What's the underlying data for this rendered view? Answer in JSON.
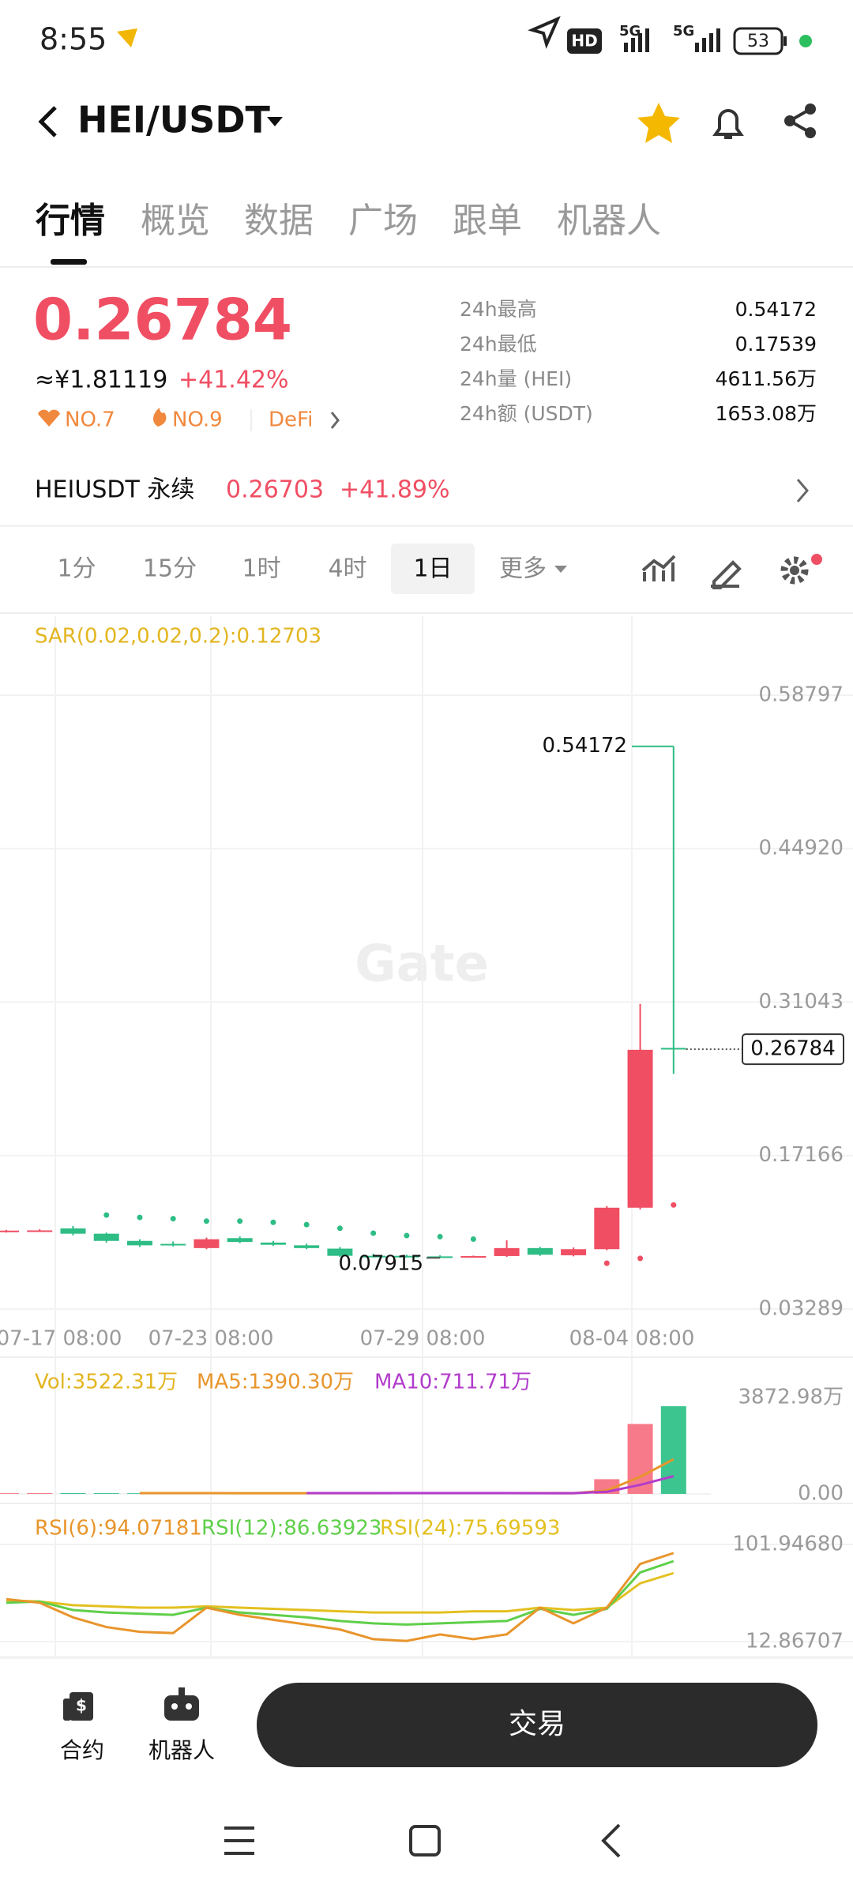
{
  "status_bar": {
    "time": "8:55",
    "hd": "HD",
    "network": "5G",
    "network2": "5G",
    "battery": "53"
  },
  "header": {
    "pair": "HEI/USDT"
  },
  "tabs": [
    "行情",
    "概览",
    "数据",
    "广场",
    "跟单",
    "机器人"
  ],
  "ticker": {
    "price": "0.26784",
    "cny": "≈¥1.81119",
    "change": "+41.42%",
    "tags": [
      "NO.7",
      "NO.9",
      "DeFi"
    ],
    "stats": [
      {
        "label": "24h最高",
        "value": "0.54172"
      },
      {
        "label": "24h最低",
        "value": "0.17539"
      },
      {
        "label": "24h量 (HEI)",
        "value": "4611.56万"
      },
      {
        "label": "24h额 (USDT)",
        "value": "1653.08万"
      }
    ]
  },
  "perpetual": {
    "name": "HEIUSDT 永续",
    "price": "0.26703",
    "change": "+41.89%"
  },
  "intervals": [
    "1分",
    "15分",
    "1时",
    "4时",
    "1日",
    "更多"
  ],
  "kline": {
    "indicator": "SAR(0.02,0.02,0.2):0.12703",
    "watermark": "Gate",
    "ylim": [
      0.0236,
      0.6594
    ],
    "yticks": [
      0.58797,
      {
        "value": 0.4492,
        "label": "0.44920"
      },
      0.31043,
      0.17166,
      0.03289
    ],
    "xticks": [
      "07-17 08:00",
      "07-23 08:00",
      "07-29 08:00",
      "08-04 08:00"
    ],
    "candles": [
      {
        "open": 0.103,
        "high": 0.1045,
        "low": 0.102,
        "close": 0.1038
      },
      {
        "open": 0.1035,
        "high": 0.105,
        "low": 0.1025,
        "close": 0.104
      },
      {
        "open": 0.1058,
        "high": 0.108,
        "low": 0.0995,
        "close": 0.101
      },
      {
        "open": 0.101,
        "high": 0.102,
        "low": 0.093,
        "close": 0.0945
      },
      {
        "open": 0.0945,
        "high": 0.096,
        "low": 0.089,
        "close": 0.0905
      },
      {
        "open": 0.0918,
        "high": 0.094,
        "low": 0.0895,
        "close": 0.0905
      },
      {
        "open": 0.088,
        "high": 0.0975,
        "low": 0.087,
        "close": 0.096
      },
      {
        "open": 0.097,
        "high": 0.0985,
        "low": 0.0925,
        "close": 0.0935
      },
      {
        "open": 0.093,
        "high": 0.0945,
        "low": 0.09,
        "close": 0.091
      },
      {
        "open": 0.0905,
        "high": 0.092,
        "low": 0.087,
        "close": 0.088
      },
      {
        "open": 0.0875,
        "high": 0.089,
        "low": 0.08,
        "close": 0.081
      },
      {
        "open": 0.081,
        "high": 0.083,
        "low": 0.0795,
        "close": 0.08
      },
      {
        "open": 0.081,
        "high": 0.082,
        "low": 0.0795,
        "close": 0.08
      },
      {
        "open": 0.0805,
        "high": 0.0815,
        "low": 0.07915,
        "close": 0.0798
      },
      {
        "open": 0.0798,
        "high": 0.0812,
        "low": 0.0795,
        "close": 0.0808
      },
      {
        "open": 0.0808,
        "high": 0.095,
        "low": 0.08,
        "close": 0.088
      },
      {
        "open": 0.088,
        "high": 0.089,
        "low": 0.081,
        "close": 0.082
      },
      {
        "open": 0.0815,
        "high": 0.0885,
        "low": 0.0805,
        "close": 0.087
      },
      {
        "open": 0.087,
        "high": 0.126,
        "low": 0.086,
        "close": 0.1245
      },
      {
        "open": 0.1245,
        "high": 0.3088,
        "low": 0.123,
        "close": 0.2673
      },
      {
        "open": 0.269,
        "high": 0.54172,
        "low": 0.2455,
        "close": 0.26784
      }
    ],
    "sar": [
      null,
      null,
      null,
      0.1179,
      0.1157,
      0.1146,
      0.1124,
      0.1124,
      0.1113,
      0.1092,
      0.1059,
      0.1015,
      0.0993,
      0.0983,
      0.0961,
      null,
      null,
      null,
      0.0743,
      0.0787,
      0.12703
    ]
  },
  "volume": {
    "label": "Vol:3522.31万",
    "ma5_label": "MA5:1390.30万",
    "ma10_label": "MA10:711.71万",
    "ylim": [
      0,
      3872.98
    ],
    "yticks": [
      {
        "value": 3872.98,
        "label": "3872.98万"
      },
      {
        "value": 0,
        "label": "0.00"
      }
    ],
    "values": [
      28,
      31,
      35,
      30,
      27,
      29,
      33,
      26,
      25,
      30,
      34,
      30,
      35,
      32,
      36,
      32.6,
      14.19,
      15,
      590,
      2810,
      3522.31
    ],
    "ma5": [
      null,
      null,
      null,
      null,
      30.2,
      30.4,
      30.8,
      29,
      28,
      28.6,
      29.4,
      29,
      30.8,
      32.2,
      33.4,
      33.1,
      29.96,
      25.96,
      137.56,
      686.44,
      1390.3
    ],
    "ma10": [
      null,
      null,
      null,
      null,
      null,
      null,
      null,
      null,
      null,
      29.8,
      30,
      29.9,
      29.9,
      30.1,
      31,
      31.1,
      29.6,
      28.5,
      84.7,
      363.2,
      711.71
    ]
  },
  "rsi": {
    "rsi6_label": "RSI(6):94.07181",
    "rsi12_label": "RSI(12):86.63923",
    "rsi24_label": "RSI(24):75.69593",
    "ylim": [
      12.86707,
      101.9468
    ],
    "yticks": [
      {
        "value": 101.9468,
        "label": "101.94680"
      },
      12.86707
    ],
    "rsi6": [
      51.8,
      48.5,
      35.1,
      26.2,
      21.8,
      20.7,
      44,
      37.4,
      32.9,
      28.5,
      24,
      15.1,
      13.5,
      19.5,
      15.1,
      19.5,
      44,
      29.6,
      44,
      84.1,
      94.07181
    ],
    "rsi12": [
      48.5,
      49.6,
      41.8,
      39.6,
      38.5,
      37.4,
      44,
      39.6,
      37.4,
      35.1,
      31.8,
      29.6,
      28.5,
      29.6,
      30.7,
      31.8,
      42.9,
      37.4,
      42.9,
      76.3,
      86.63923
    ],
    "rsi24": [
      50.7,
      49.6,
      46.3,
      45.2,
      44,
      44,
      45.2,
      44,
      42.9,
      41.8,
      40.7,
      39.6,
      39.6,
      39.6,
      40.7,
      40.7,
      44,
      41.8,
      44,
      66.3,
      75.69593
    ]
  },
  "bottom_bar": {
    "contract": "合约",
    "robot": "机器人",
    "trade": "交易"
  }
}
